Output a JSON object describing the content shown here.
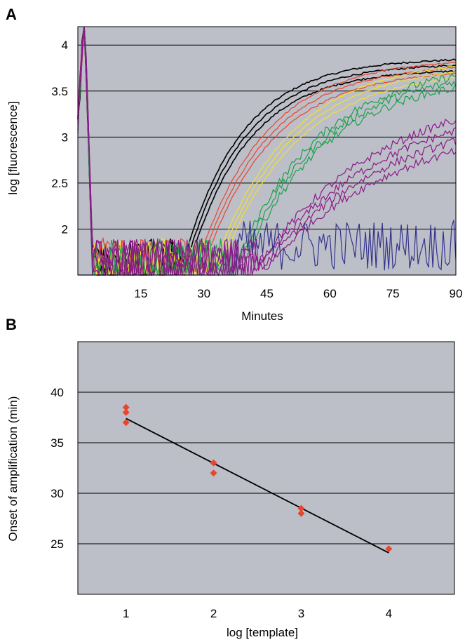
{
  "chart_data": [
    {
      "panel_label": "A",
      "type": "line",
      "title": "",
      "xlabel": "Minutes",
      "ylabel": "log [fluorescence]",
      "xlim": [
        0,
        90
      ],
      "ylim": [
        1.5,
        4.2
      ],
      "x_ticks": [
        15,
        30,
        45,
        60,
        75,
        90
      ],
      "x_tick_labels": [
        "15",
        "30",
        "45",
        "60",
        "75",
        "90"
      ],
      "y_ticks": [
        2,
        2.5,
        3,
        3.5,
        4
      ],
      "y_tick_labels": [
        "2",
        "2.5",
        "3",
        "3.5",
        "4"
      ],
      "grid": "horizontal",
      "background": "#bcbec8",
      "series_groups": [
        {
          "color": "#000000",
          "replicates": 3,
          "onset_min": 24.5,
          "plateau": 3.86,
          "tau": 14
        },
        {
          "color": "#e8452c",
          "replicates": 3,
          "onset_min": 28.0,
          "plateau": 3.86,
          "tau": 16
        },
        {
          "color": "#f2e22a",
          "replicates": 3,
          "onset_min": 32.0,
          "plateau": 3.86,
          "tau": 18
        },
        {
          "color": "#1aa34a",
          "replicates": 3,
          "onset_min": 37.0,
          "plateau": 3.82,
          "tau": 20
        },
        {
          "color": "#8b1a88",
          "replicates": 4,
          "onset_min": 42.0,
          "plateau": 3.6,
          "tau": 30
        },
        {
          "color": "#33338a",
          "replicates": 1,
          "onset_min": null,
          "plateau": 2.0,
          "tau": null
        }
      ]
    },
    {
      "panel_label": "B",
      "type": "scatter",
      "title": "",
      "xlabel": "log [template]",
      "ylabel": "Onset of amplification (min)",
      "xlim": [
        0.45,
        4.75
      ],
      "ylim": [
        20,
        45
      ],
      "x_ticks": [
        1,
        2,
        3,
        4
      ],
      "x_tick_labels": [
        "1",
        "2",
        "3",
        "4"
      ],
      "y_ticks": [
        25,
        30,
        35,
        40
      ],
      "y_tick_labels": [
        "25",
        "30",
        "35",
        "40"
      ],
      "grid": "horizontal",
      "background": "#bcbec8",
      "marker_color": "#e8452c",
      "points": [
        {
          "x": 1,
          "y": 38.5
        },
        {
          "x": 1,
          "y": 38.0
        },
        {
          "x": 1,
          "y": 37.0
        },
        {
          "x": 2,
          "y": 33.0
        },
        {
          "x": 2,
          "y": 32.0
        },
        {
          "x": 3,
          "y": 28.5
        },
        {
          "x": 3,
          "y": 28.0
        },
        {
          "x": 4,
          "y": 24.5
        }
      ],
      "fit_line": {
        "x": [
          1,
          4
        ],
        "y": [
          37.4,
          24.1
        ],
        "color": "#000000"
      }
    }
  ]
}
